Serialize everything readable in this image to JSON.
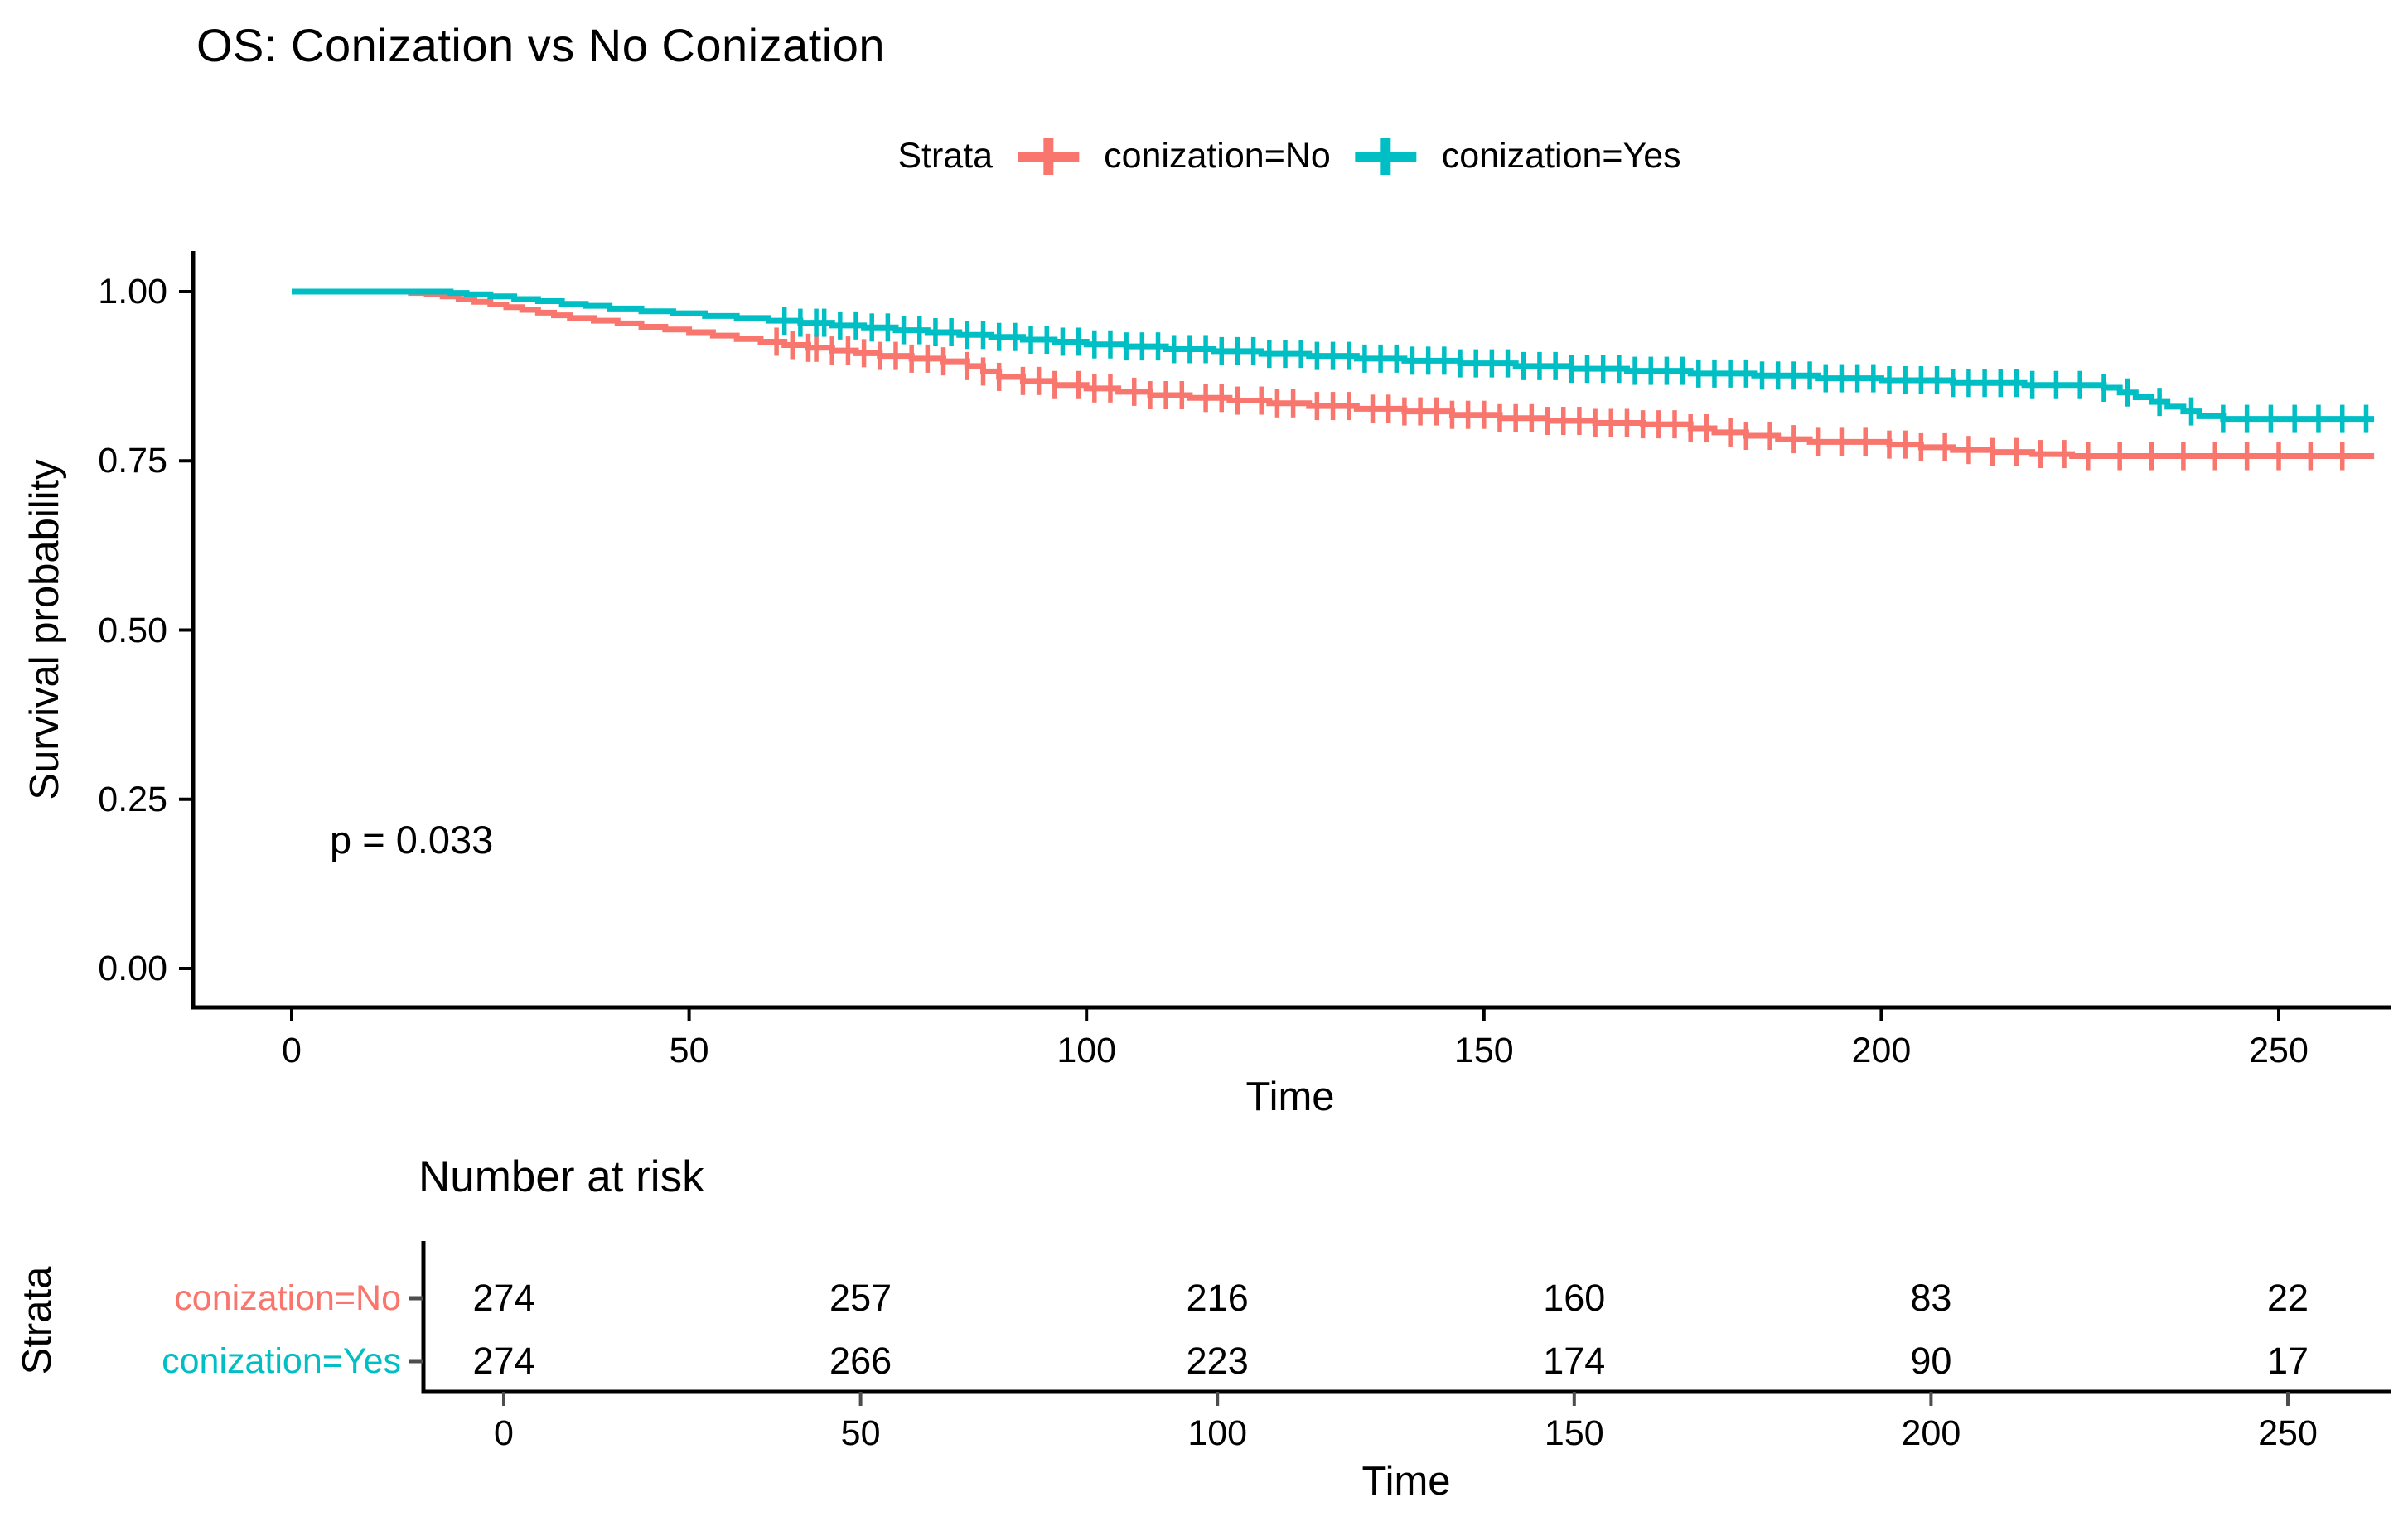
{
  "page": {
    "background": "#FFFFFF"
  },
  "chart_data": {
    "type": "line",
    "subtype": "kaplan-meier-step",
    "title": "OS: Conization vs No Conization",
    "xlabel": "Time",
    "ylabel": "Survival probability",
    "legend_title": "Strata",
    "legend_position": "top",
    "pvalue_label": "p = 0.033",
    "grid": false,
    "x_ticks": [
      0,
      50,
      100,
      150,
      200,
      250
    ],
    "y_ticks": [
      "0.00",
      "0.25",
      "0.50",
      "0.75",
      "1.00"
    ],
    "xlim": [
      -12,
      264
    ],
    "ylim": [
      0,
      1.05
    ],
    "t_end": 262,
    "series": [
      {
        "name": "conization=No",
        "color": "#F8766D",
        "steps": [
          [
            0,
            1
          ],
          [
            15,
            0.998
          ],
          [
            17,
            0.996
          ],
          [
            19,
            0.993
          ],
          [
            21,
            0.989
          ],
          [
            23,
            0.985
          ],
          [
            25,
            0.981
          ],
          [
            27,
            0.977
          ],
          [
            29,
            0.973
          ],
          [
            31,
            0.969
          ],
          [
            33,
            0.965
          ],
          [
            35,
            0.961
          ],
          [
            38,
            0.957
          ],
          [
            41,
            0.953
          ],
          [
            44,
            0.948
          ],
          [
            47,
            0.944
          ],
          [
            50,
            0.94
          ],
          [
            53,
            0.935
          ],
          [
            56,
            0.93
          ],
          [
            59,
            0.926
          ],
          [
            62,
            0.921
          ],
          [
            65,
            0.917
          ],
          [
            68,
            0.913
          ],
          [
            71,
            0.909
          ],
          [
            74,
            0.905
          ],
          [
            78,
            0.901
          ],
          [
            82,
            0.897
          ],
          [
            85,
            0.89
          ],
          [
            87,
            0.882
          ],
          [
            89,
            0.874
          ],
          [
            92,
            0.868
          ],
          [
            96,
            0.862
          ],
          [
            100,
            0.857
          ],
          [
            104,
            0.852
          ],
          [
            108,
            0.847
          ],
          [
            113,
            0.843
          ],
          [
            118,
            0.839
          ],
          [
            123,
            0.835
          ],
          [
            128,
            0.831
          ],
          [
            134,
            0.827
          ],
          [
            140,
            0.823
          ],
          [
            146,
            0.818
          ],
          [
            152,
            0.813
          ],
          [
            158,
            0.809
          ],
          [
            164,
            0.806
          ],
          [
            170,
            0.804
          ],
          [
            176,
            0.798
          ],
          [
            179,
            0.792
          ],
          [
            183,
            0.787
          ],
          [
            187,
            0.782
          ],
          [
            191,
            0.778
          ],
          [
            201,
            0.774
          ],
          [
            205,
            0.77
          ],
          [
            209,
            0.766
          ],
          [
            214,
            0.763
          ],
          [
            219,
            0.76
          ],
          [
            224,
            0.757
          ]
        ],
        "censor_times": [
          61,
          63,
          65,
          66,
          68,
          70,
          72,
          74,
          76,
          78,
          80,
          82,
          85,
          87,
          89,
          92,
          94,
          96,
          99,
          101,
          103,
          106,
          108,
          110,
          112,
          115,
          117,
          119,
          122,
          124,
          126,
          129,
          131,
          133,
          136,
          138,
          140,
          142,
          144,
          146,
          148,
          150,
          152,
          154,
          156,
          158,
          160,
          162,
          164,
          166,
          168,
          170,
          172,
          174,
          176,
          178,
          181,
          183,
          186,
          189,
          192,
          195,
          198,
          201,
          203,
          205,
          208,
          211,
          214,
          217,
          220,
          223,
          226,
          230,
          234,
          238,
          242,
          246,
          250,
          254,
          258
        ]
      },
      {
        "name": "conization=Yes",
        "color": "#00BFC4",
        "steps": [
          [
            0,
            1
          ],
          [
            20,
            0.998
          ],
          [
            22,
            0.996
          ],
          [
            25,
            0.993
          ],
          [
            28,
            0.989
          ],
          [
            31,
            0.986
          ],
          [
            34,
            0.982
          ],
          [
            37,
            0.979
          ],
          [
            40,
            0.975
          ],
          [
            44,
            0.971
          ],
          [
            48,
            0.968
          ],
          [
            52,
            0.964
          ],
          [
            56,
            0.961
          ],
          [
            60,
            0.957
          ],
          [
            64,
            0.954
          ],
          [
            68,
            0.95
          ],
          [
            72,
            0.947
          ],
          [
            76,
            0.943
          ],
          [
            80,
            0.94
          ],
          [
            84,
            0.936
          ],
          [
            88,
            0.933
          ],
          [
            92,
            0.929
          ],
          [
            96,
            0.926
          ],
          [
            100,
            0.922
          ],
          [
            105,
            0.919
          ],
          [
            110,
            0.915
          ],
          [
            116,
            0.912
          ],
          [
            122,
            0.908
          ],
          [
            128,
            0.905
          ],
          [
            134,
            0.901
          ],
          [
            140,
            0.898
          ],
          [
            147,
            0.894
          ],
          [
            154,
            0.89
          ],
          [
            161,
            0.886
          ],
          [
            168,
            0.883
          ],
          [
            176,
            0.879
          ],
          [
            184,
            0.876
          ],
          [
            192,
            0.872
          ],
          [
            200,
            0.869
          ],
          [
            209,
            0.865
          ],
          [
            218,
            0.862
          ],
          [
            228,
            0.858
          ],
          [
            230,
            0.851
          ],
          [
            232,
            0.844
          ],
          [
            234,
            0.837
          ],
          [
            236,
            0.83
          ],
          [
            238,
            0.823
          ],
          [
            240,
            0.816
          ],
          [
            243,
            0.812
          ]
        ],
        "censor_times": [
          62,
          64,
          66,
          67,
          69,
          71,
          73,
          75,
          77,
          79,
          81,
          83,
          85,
          87,
          89,
          91,
          93,
          95,
          97,
          99,
          101,
          103,
          105,
          107,
          109,
          111,
          113,
          115,
          117,
          119,
          121,
          123,
          125,
          127,
          129,
          131,
          133,
          135,
          137,
          139,
          141,
          143,
          145,
          147,
          149,
          151,
          153,
          155,
          157,
          159,
          161,
          163,
          165,
          167,
          169,
          171,
          173,
          175,
          177,
          179,
          181,
          183,
          185,
          187,
          189,
          191,
          193,
          195,
          197,
          199,
          201,
          203,
          205,
          207,
          209,
          211,
          213,
          215,
          217,
          219,
          222,
          225,
          228,
          231,
          235,
          239,
          243,
          246,
          249,
          252,
          255,
          258,
          261
        ]
      }
    ],
    "risk_table": {
      "title": "Number at risk",
      "ylabel": "Strata",
      "xlabel": "Time",
      "times": [
        0,
        50,
        100,
        150,
        200,
        250
      ],
      "rows": [
        {
          "label": "conization=No",
          "color": "#F8766D",
          "values": [
            274,
            257,
            216,
            160,
            83,
            22
          ]
        },
        {
          "label": "conization=Yes",
          "color": "#00BFC4",
          "values": [
            274,
            266,
            223,
            174,
            90,
            17
          ]
        }
      ]
    }
  }
}
